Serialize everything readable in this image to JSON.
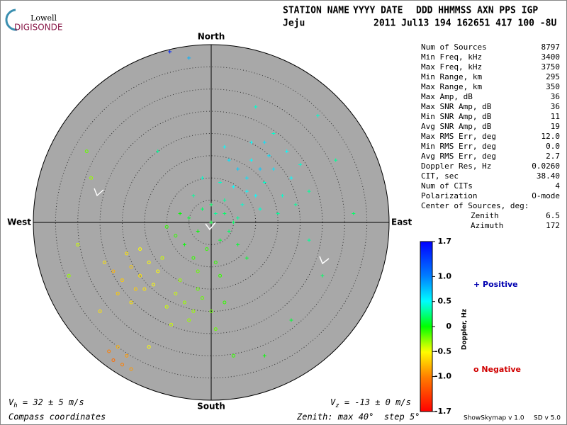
{
  "logo": {
    "top": "Lowell",
    "bottom": "DIGISONDE"
  },
  "header": {
    "line1": [
      "STATION NAME",
      "YYYY DATE",
      "DDD HHMMSS AXN PPS IGP"
    ],
    "line2": [
      "Jeju",
      "2011 Jul13 194 162651 417 100 -8U"
    ]
  },
  "stats": [
    {
      "label": "Num of Sources",
      "value": "8797"
    },
    {
      "label": "Min Freq, kHz",
      "value": "3400"
    },
    {
      "label": "Max Freq, kHz",
      "value": "3750"
    },
    {
      "label": "Min Range, km",
      "value": "295"
    },
    {
      "label": "Max Range, km",
      "value": "350"
    },
    {
      "label": "Max Amp, dB",
      "value": "36"
    },
    {
      "label": "Max SNR Amp, dB",
      "value": "36"
    },
    {
      "label": "Min SNR Amp, dB",
      "value": "11"
    },
    {
      "label": "Avg SNR Amp, dB",
      "value": "19"
    },
    {
      "label": "Max RMS Err, deg",
      "value": "12.0"
    },
    {
      "label": "Min RMS Err, deg",
      "value": "0.0"
    },
    {
      "label": "Avg RMS Err, deg",
      "value": "2.7"
    },
    {
      "label": "Doppler Res, Hz",
      "value": "0.0260"
    },
    {
      "label": "CIT, sec",
      "value": "38.40"
    },
    {
      "label": "Num of CITs",
      "value": "4"
    },
    {
      "label": "Polarization",
      "value": "O-mode"
    }
  ],
  "center": {
    "title": "Center of Sources, deg:",
    "rows": [
      {
        "label": "Zenith",
        "value": "6.5"
      },
      {
        "label": "Azimuth",
        "value": "172"
      }
    ]
  },
  "footer": {
    "vh": {
      "symbol": "V",
      "sub": "h",
      "text": " = 32 ± 5 m/s"
    },
    "vz": {
      "symbol": "V",
      "sub": "z",
      "text": " = -13 ± 0 m/s"
    },
    "coords": "Compass coordinates",
    "zenith": "Zenith: max 40°  step 5°",
    "version": "ShowSkymap v 1.0",
    "sd": "SD v 5.0"
  },
  "chart_data": {
    "type": "skymap",
    "compass": {
      "north": "North",
      "south": "South",
      "east": "East",
      "west": "West"
    },
    "xlim": [
      -40,
      40
    ],
    "ylim": [
      -40,
      40
    ],
    "rticks": [
      5,
      10,
      15,
      20,
      25,
      30,
      35
    ],
    "x": [
      5,
      8,
      10,
      12,
      14,
      6,
      9,
      3,
      16,
      11,
      7,
      13,
      18,
      4,
      15,
      2,
      9,
      20,
      17,
      11,
      1,
      6,
      19,
      8,
      12,
      -2,
      -4,
      22,
      3,
      14,
      0,
      -3,
      2,
      -5,
      -6,
      3,
      -1,
      4,
      -8,
      -2,
      1,
      -4,
      6,
      -7,
      5,
      -10,
      0,
      -3,
      2,
      8,
      -16,
      -18,
      -14,
      -20,
      -15,
      -12,
      -19,
      -17,
      -22,
      -13,
      -11,
      -21,
      -16,
      -24,
      -18,
      -6,
      -4,
      -8,
      -2,
      -10,
      -5,
      0,
      -7,
      -3,
      1,
      -9,
      3,
      -20,
      -22,
      -18,
      -23,
      -19,
      -21,
      -9.3,
      -5,
      24,
      28,
      -28,
      -27,
      -30,
      -32,
      25,
      18,
      12,
      -14,
      -25,
      32,
      -12,
      10,
      22,
      5
    ],
    "y": [
      8,
      10,
      6,
      9,
      12,
      12,
      14,
      5,
      6,
      3,
      4,
      15,
      10,
      14,
      2,
      9,
      18,
      13,
      16,
      12,
      2,
      1,
      4,
      7,
      18,
      10,
      6,
      7,
      17,
      20,
      0,
      -2,
      -4,
      1,
      -5,
      2,
      -6,
      -2,
      -3,
      3,
      -9,
      -8,
      -5,
      2,
      0,
      -1,
      4,
      -11,
      -12,
      -8,
      -12,
      -10,
      -9,
      -13,
      -15,
      -11,
      -7,
      -15,
      -11,
      -14,
      -8,
      -16,
      -6,
      -9,
      -18,
      -18,
      -20,
      -16,
      -17,
      -19,
      -22,
      -20,
      -13,
      -15,
      -24,
      -23,
      -18,
      -32,
      -31,
      -33,
      -29,
      -30,
      -28,
      38.4,
      37,
      24,
      14,
      16,
      10,
      -5,
      -12,
      -12,
      -22,
      -30,
      -28,
      -20,
      2,
      16,
      26,
      -4,
      -30
    ],
    "doppler": [
      0.5,
      0.6,
      0.5,
      0.4,
      0.6,
      0.7,
      0.5,
      0.3,
      0.4,
      0.4,
      0.4,
      0.6,
      0.5,
      0.6,
      0.3,
      0.4,
      0.5,
      0.4,
      0.5,
      0.7,
      0.3,
      0.3,
      0.3,
      0.5,
      0.6,
      0.4,
      0.3,
      0.3,
      0.5,
      0.4,
      0.1,
      0,
      0.1,
      0.1,
      0,
      0.2,
      -0.1,
      0.2,
      -0.1,
      0.2,
      -0.1,
      -0.1,
      0.1,
      0,
      0.2,
      -0.1,
      0.2,
      -0.2,
      -0.1,
      0.1,
      -0.6,
      -0.7,
      -0.5,
      -0.7,
      -0.6,
      -0.5,
      -0.6,
      -0.7,
      -0.8,
      -0.5,
      -0.4,
      -0.7,
      -0.5,
      -0.6,
      -0.6,
      -0.3,
      -0.3,
      -0.4,
      -0.2,
      -0.4,
      -0.3,
      -0.2,
      -0.3,
      -0.2,
      -0.2,
      -0.4,
      -0.1,
      -1.0,
      -1.1,
      -0.9,
      -1.0,
      -0.9,
      -0.8,
      1.5,
      0.8,
      0.4,
      0.3,
      -0.2,
      -0.3,
      -0.4,
      -0.3,
      0.2,
      0.1,
      0,
      -0.5,
      -0.6,
      0.2,
      0.3,
      0.4,
      0.3,
      -0.1
    ],
    "colorbar": {
      "label": "Doppler, Hz",
      "lim": [
        -1.7,
        1.7
      ],
      "ticks": [
        1.7,
        {
          "value": 1,
          "label": "1.0"
        },
        0.5,
        0,
        -0.5,
        {
          "value": -1,
          "label": "-1.0"
        },
        -1.7
      ]
    },
    "legend": {
      "positive": "+ Positive",
      "negative": "o Negative"
    }
  }
}
